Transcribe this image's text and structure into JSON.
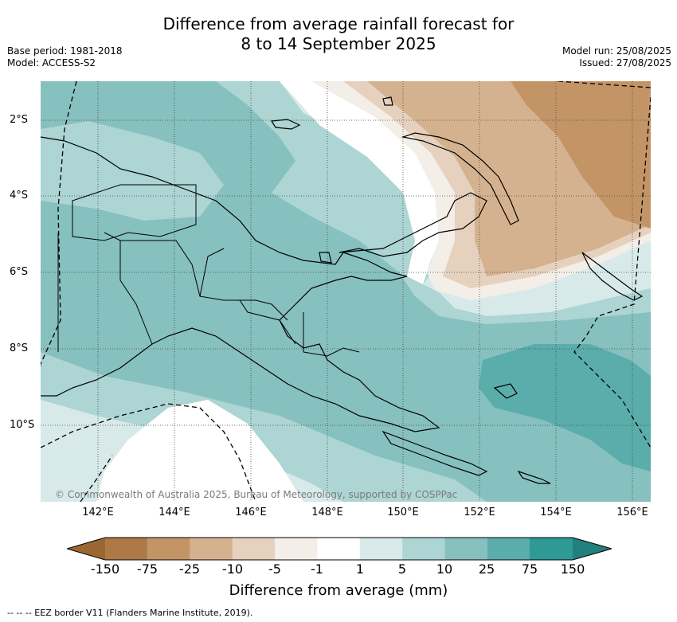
{
  "title": {
    "line1": "Difference from average rainfall forecast for",
    "line2": "8 to 14 September 2025"
  },
  "meta_left": {
    "base_period": "Base period: 1981-2018",
    "model": "Model: ACCESS-S2"
  },
  "meta_right": {
    "model_run": "Model run: 25/08/2025",
    "issued": "Issued: 27/08/2025"
  },
  "axes": {
    "latitude_labels": [
      "2°S",
      "4°S",
      "6°S",
      "8°S",
      "10°S"
    ],
    "longitude_labels": [
      "142°E",
      "144°E",
      "146°E",
      "148°E",
      "150°E",
      "152°E",
      "154°E",
      "156°E"
    ]
  },
  "copyright": "© Commonwealth of Australia 2025, Bureau of Meteorology, supported by COSPPac",
  "colorbar": {
    "tick_labels": [
      "-150",
      "-75",
      "-25",
      "-10",
      "-5",
      "-1",
      "1",
      "5",
      "10",
      "25",
      "75",
      "150"
    ],
    "label": "Difference from average (mm)",
    "colors": [
      "#9b6632",
      "#ad7a47",
      "#c39566",
      "#d5b28f",
      "#e6d1be",
      "#f3eee8",
      "#ffffff",
      "#d7eae9",
      "#acd5d4",
      "#86c0bf",
      "#5aadaa",
      "#2e9995",
      "#22807c"
    ]
  },
  "eez_note": "--  --  -- EEZ border V11 (Flanders Marine Institute, 2019)."
}
